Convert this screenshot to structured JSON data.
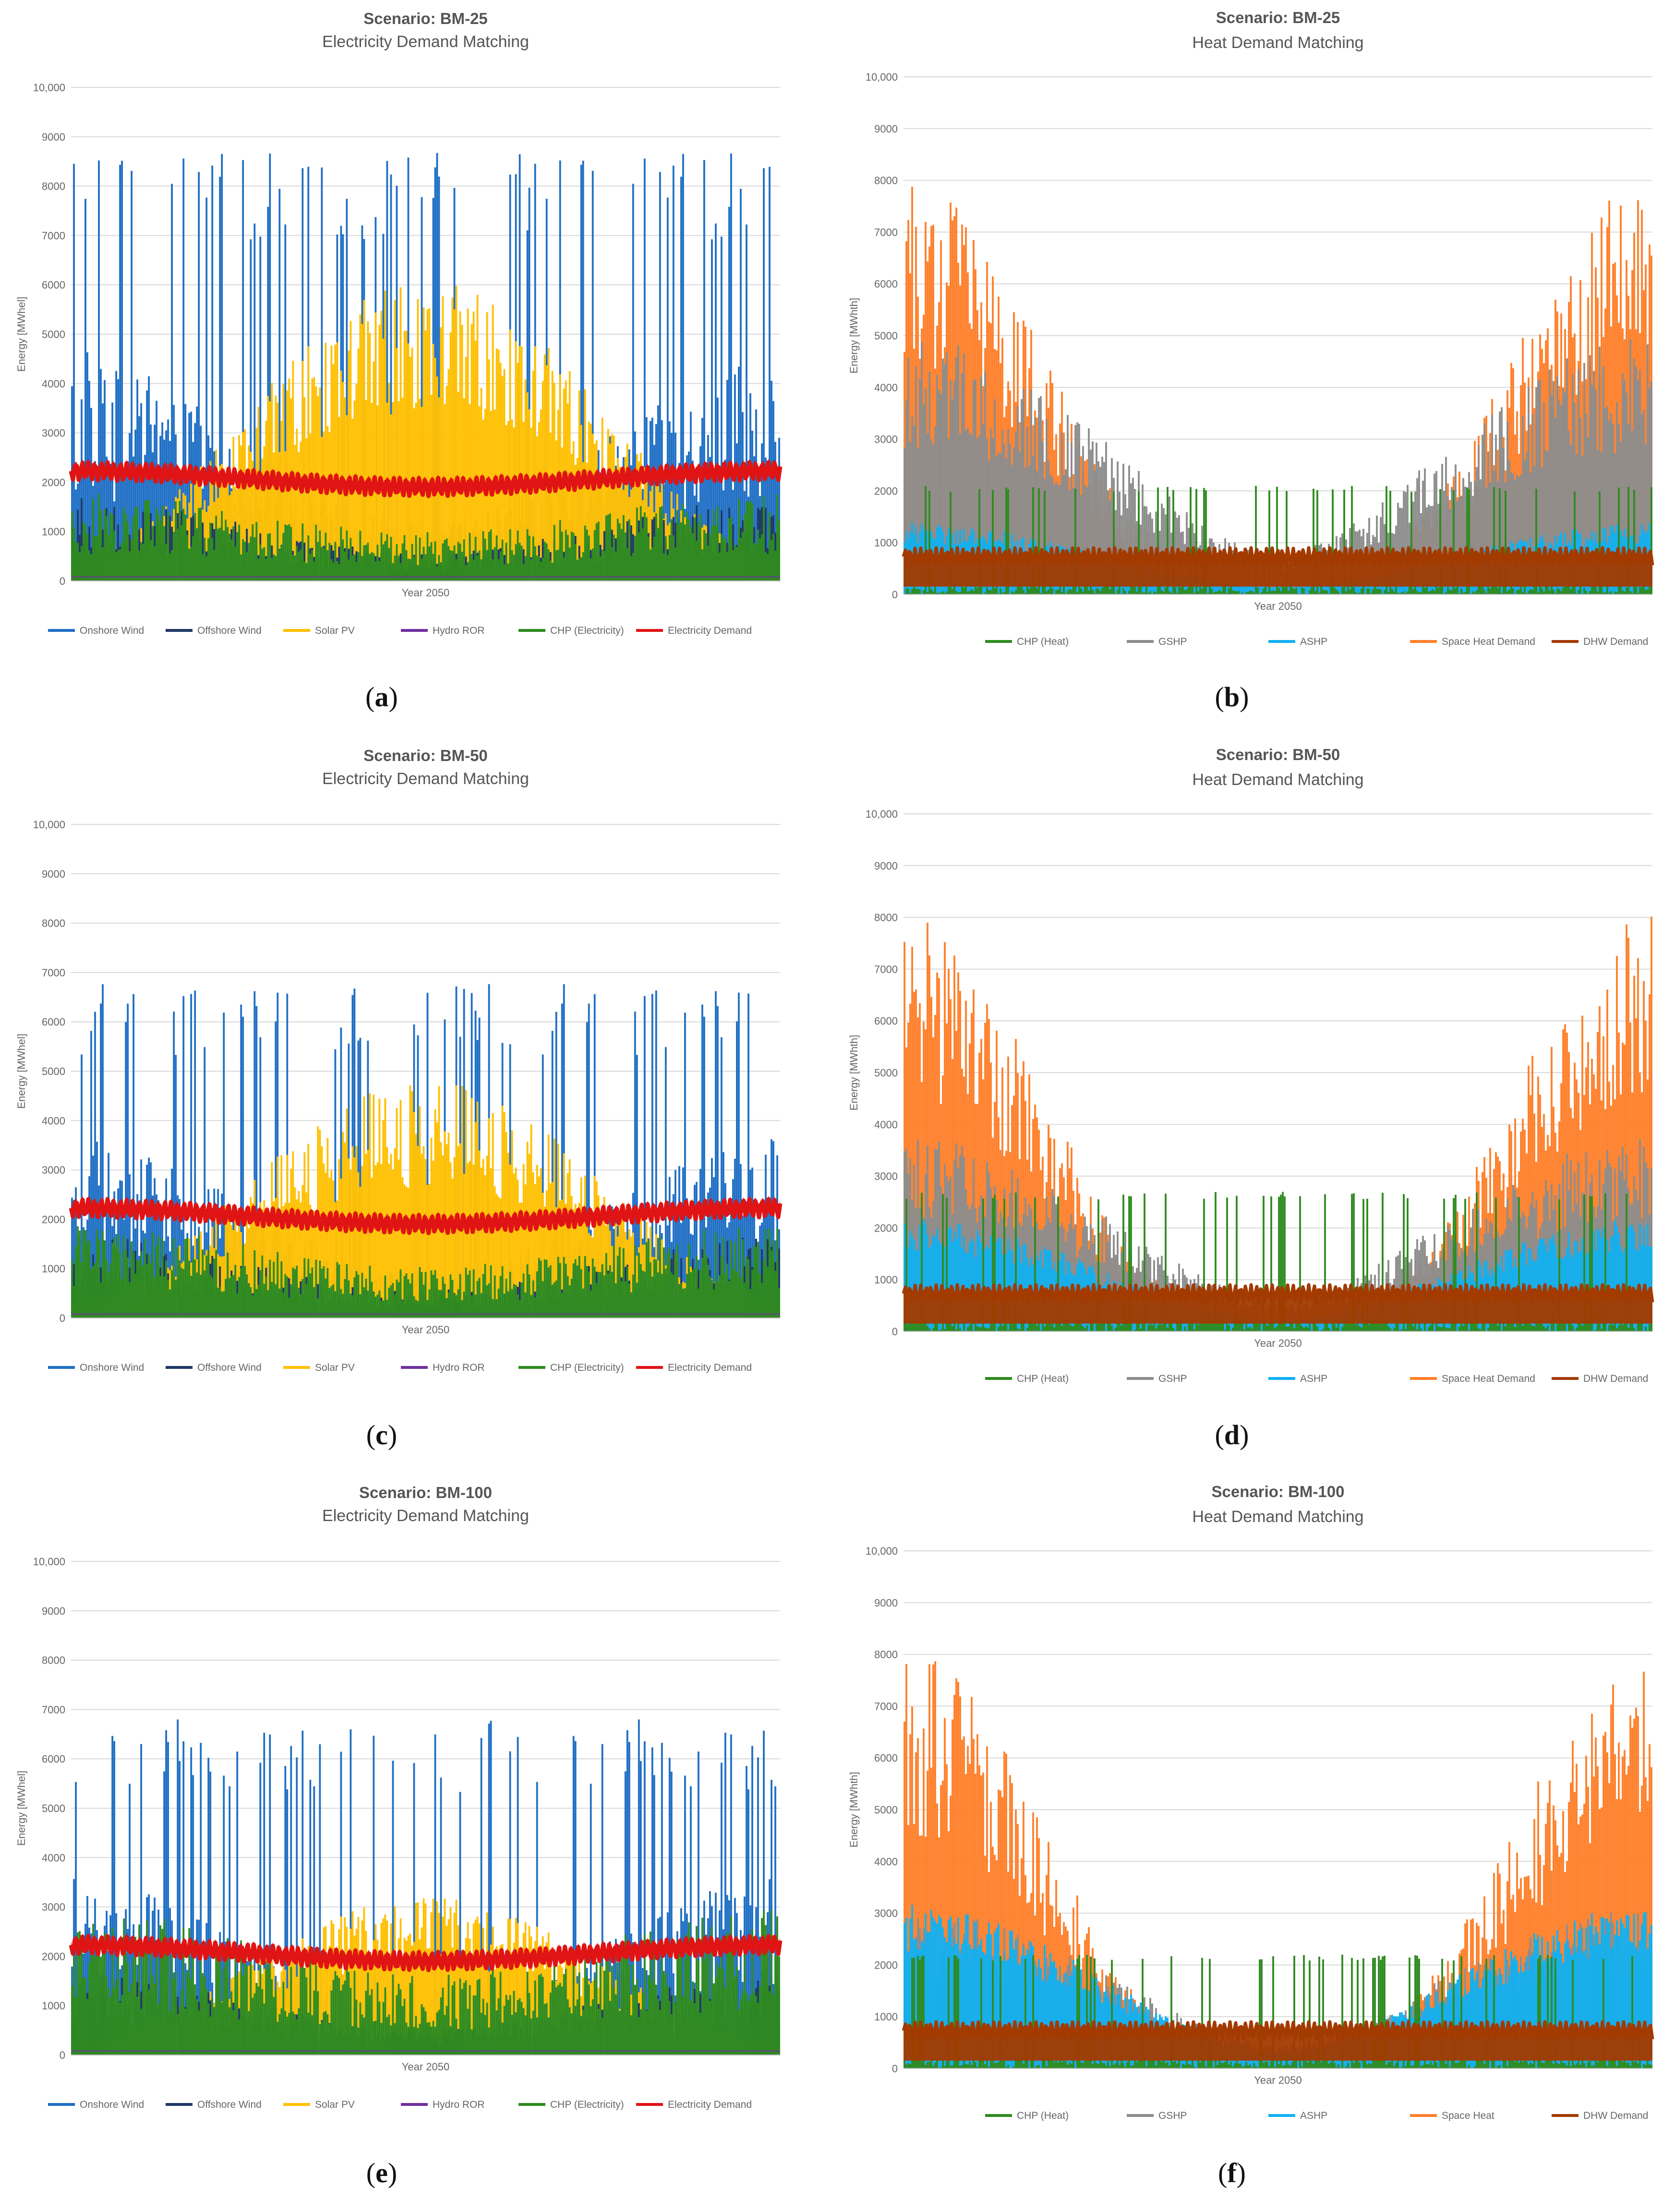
{
  "chart_data": [
    {
      "id": "a",
      "label": "a",
      "type": "area",
      "title": "Scenario: BM-25",
      "subtitle": "Electricity Demand Matching",
      "xlabel": "Year 2050",
      "ylabel": "Energy [MWhel]",
      "ylim": [
        0,
        10000
      ],
      "yticks": [
        0,
        1000,
        2000,
        3000,
        4000,
        5000,
        6000,
        7000,
        8000,
        9000,
        10000
      ],
      "ytick_labels": [
        "0",
        "1000",
        "2000",
        "3000",
        "4000",
        "5000",
        "6000",
        "7000",
        "8000",
        "9000",
        "10,000"
      ],
      "grid": true,
      "legend_position": "bottom",
      "series": [
        {
          "name": "Onshore Wind",
          "color": "#1f6fc5",
          "peak": 8700,
          "pattern": "wind"
        },
        {
          "name": "Offshore Wind",
          "color": "#1f3864",
          "peak": 2000,
          "pattern": "offwind"
        },
        {
          "name": "Solar PV",
          "color": "#ffc000",
          "peak": 6100,
          "pattern": "solar"
        },
        {
          "name": "Hydro ROR",
          "color": "#7030a0",
          "peak": 80,
          "pattern": "hydro"
        },
        {
          "name": "CHP (Electricity)",
          "color": "#2e8b1f",
          "peak": 1800,
          "pattern": "chp"
        },
        {
          "name": "Electricity Demand",
          "color": "#e01414",
          "min": 1500,
          "max": 2800,
          "pattern": "demand"
        }
      ]
    },
    {
      "id": "b",
      "label": "b",
      "type": "area",
      "title": "Scenario: BM-25",
      "subtitle": "Heat Demand Matching",
      "xlabel": "Year 2050",
      "ylabel": "Energy [MWhth]",
      "ylim": [
        0,
        10000
      ],
      "yticks": [
        0,
        1000,
        2000,
        3000,
        4000,
        5000,
        6000,
        7000,
        8000,
        9000,
        10000
      ],
      "ytick_labels": [
        "0",
        "1000",
        "2000",
        "3000",
        "4000",
        "5000",
        "6000",
        "7000",
        "8000",
        "9000",
        "10,000"
      ],
      "grid": true,
      "legend_position": "bottom",
      "series": [
        {
          "name": "CHP (Heat)",
          "color": "#2e8b1f",
          "peak": 2100,
          "pattern": "chpheat"
        },
        {
          "name": "GSHP",
          "color": "#8c8c8c",
          "peak": 5000,
          "pattern": "gshp"
        },
        {
          "name": "ASHP",
          "color": "#12b0f0",
          "peak": 1400,
          "pattern": "ashp"
        },
        {
          "name": "Space Heat Demand",
          "color": "#ff7f2a",
          "peak": 8300,
          "pattern": "space"
        },
        {
          "name": "DHW Demand",
          "color": "#a33a00",
          "min": 150,
          "max": 900,
          "pattern": "dhw"
        }
      ]
    },
    {
      "id": "c",
      "label": "c",
      "type": "area",
      "title": "Scenario: BM-50",
      "subtitle": "Electricity Demand Matching",
      "xlabel": "Year 2050",
      "ylabel": "Energy [MWhel]",
      "ylim": [
        0,
        10000
      ],
      "yticks": [
        0,
        1000,
        2000,
        3000,
        4000,
        5000,
        6000,
        7000,
        8000,
        9000,
        10000
      ],
      "ytick_labels": [
        "0",
        "1000",
        "2000",
        "3000",
        "4000",
        "5000",
        "6000",
        "7000",
        "8000",
        "9000",
        "10,000"
      ],
      "grid": true,
      "legend_position": "bottom",
      "series": [
        {
          "name": "Onshore Wind",
          "color": "#1f6fc5",
          "peak": 6800,
          "pattern": "wind"
        },
        {
          "name": "Offshore Wind",
          "color": "#1f3864",
          "peak": 2000,
          "pattern": "offwind"
        },
        {
          "name": "Solar PV",
          "color": "#ffc000",
          "peak": 4800,
          "pattern": "solar"
        },
        {
          "name": "Hydro ROR",
          "color": "#7030a0",
          "peak": 80,
          "pattern": "hydro"
        },
        {
          "name": "CHP (Electricity)",
          "color": "#2e8b1f",
          "peak": 1900,
          "pattern": "chp"
        },
        {
          "name": "Electricity Demand",
          "color": "#e01414",
          "min": 1500,
          "max": 2800,
          "pattern": "demand"
        }
      ]
    },
    {
      "id": "d",
      "label": "d",
      "type": "area",
      "title": "Scenario: BM-50",
      "subtitle": "Heat Demand Matching",
      "xlabel": "Year 2050",
      "ylabel": "Energy [MWhth]",
      "ylim": [
        0,
        10000
      ],
      "yticks": [
        0,
        1000,
        2000,
        3000,
        4000,
        5000,
        6000,
        7000,
        8000,
        9000,
        10000
      ],
      "ytick_labels": [
        "0",
        "1000",
        "2000",
        "3000",
        "4000",
        "5000",
        "6000",
        "7000",
        "8000",
        "9000",
        "10,000"
      ],
      "grid": true,
      "legend_position": "bottom",
      "series": [
        {
          "name": "CHP (Heat)",
          "color": "#2e8b1f",
          "peak": 2700,
          "pattern": "chpheat"
        },
        {
          "name": "GSHP",
          "color": "#8c8c8c",
          "peak": 3800,
          "pattern": "gshp"
        },
        {
          "name": "ASHP",
          "color": "#12b0f0",
          "peak": 2200,
          "pattern": "ashp"
        },
        {
          "name": "Space Heat Demand",
          "color": "#ff7f2a",
          "peak": 8300,
          "pattern": "space"
        },
        {
          "name": "DHW Demand",
          "color": "#a33a00",
          "min": 150,
          "max": 900,
          "pattern": "dhw"
        }
      ]
    },
    {
      "id": "e",
      "label": "e",
      "type": "area",
      "title": "Scenario: BM-100",
      "subtitle": "Electricity Demand Matching",
      "xlabel": "Year 2050",
      "ylabel": "Energy [MWhel]",
      "ylim": [
        0,
        10000
      ],
      "yticks": [
        0,
        1000,
        2000,
        3000,
        4000,
        5000,
        6000,
        7000,
        8000,
        9000,
        10000
      ],
      "ytick_labels": [
        "0",
        "1000",
        "2000",
        "3000",
        "4000",
        "5000",
        "6000",
        "7000",
        "8000",
        "9000",
        "10,000"
      ],
      "grid": true,
      "legend_position": "bottom",
      "series": [
        {
          "name": "Onshore Wind",
          "color": "#1f6fc5",
          "peak": 6800,
          "pattern": "wind"
        },
        {
          "name": "Offshore Wind",
          "color": "#1f3864",
          "peak": 2000,
          "pattern": "offwind"
        },
        {
          "name": "Solar PV",
          "color": "#ffc000",
          "peak": 3200,
          "pattern": "solar"
        },
        {
          "name": "Hydro ROR",
          "color": "#7030a0",
          "peak": 80,
          "pattern": "hydro"
        },
        {
          "name": "CHP (Electricity)",
          "color": "#2e8b1f",
          "peak": 3000,
          "pattern": "chp"
        },
        {
          "name": "Electricity Demand",
          "color": "#e01414",
          "min": 1500,
          "max": 2800,
          "pattern": "demand"
        }
      ]
    },
    {
      "id": "f",
      "label": "f",
      "type": "area",
      "title": "Scenario: BM-100",
      "subtitle": "Heat Demand Matching",
      "xlabel": "Year 2050",
      "ylabel": "Energy [MWhth]",
      "ylim": [
        0,
        10000
      ],
      "yticks": [
        0,
        1000,
        2000,
        3000,
        4000,
        5000,
        6000,
        7000,
        8000,
        9000,
        10000
      ],
      "ytick_labels": [
        "0",
        "1000",
        "2000",
        "3000",
        "4000",
        "5000",
        "6000",
        "7000",
        "8000",
        "9000",
        "10,000"
      ],
      "grid": true,
      "legend_position": "bottom",
      "series": [
        {
          "name": "CHP (Heat)",
          "color": "#2e8b1f",
          "peak": 2200,
          "pattern": "chpheat"
        },
        {
          "name": "GSHP",
          "color": "#8c8c8c",
          "peak": 3100,
          "pattern": "gshp"
        },
        {
          "name": "ASHP",
          "color": "#12b0f0",
          "peak": 3200,
          "pattern": "ashp"
        },
        {
          "name": "Space Heat",
          "color": "#ff7f2a",
          "peak": 8300,
          "pattern": "space"
        },
        {
          "name": "DHW Demand",
          "color": "#a33a00",
          "min": 150,
          "max": 900,
          "pattern": "dhw"
        }
      ]
    }
  ]
}
